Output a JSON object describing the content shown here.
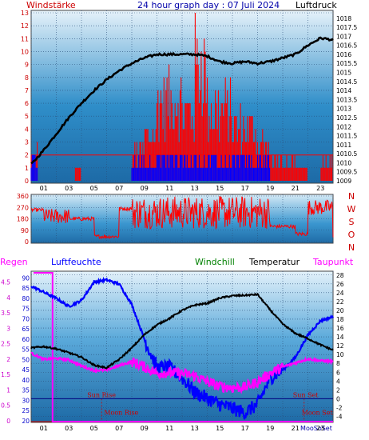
{
  "header": {
    "left_label": "Windstärke",
    "title": "24 hour graph day : 07 Juli 2024",
    "right_label": "Luftdruck"
  },
  "middle_labels": {
    "directions": [
      "N",
      "W",
      "S",
      "O",
      "N"
    ]
  },
  "bottom_header": {
    "regen": "Regen",
    "luftfeuchte": "Luftfeuchte",
    "windchill": "Windchill",
    "temperatur": "Temperatur",
    "taupunkt": "Taupunkt"
  },
  "colors": {
    "wind": "#ff0000",
    "gust_base": "#0000ff",
    "pressure": "#000000",
    "humidity": "#0000ff",
    "temperature": "#000000",
    "dewpoint": "#ff00ff",
    "rain": "#ff00ff",
    "sun_line": "#000080",
    "label_red": "#cc0000"
  },
  "chart_data": [
    {
      "type": "line",
      "name": "panel-1",
      "x_tick_labels": [
        "01",
        "03",
        "05",
        "07",
        "09",
        "11",
        "13",
        "15",
        "17",
        "19",
        "21",
        "23"
      ],
      "left_axis": {
        "label": "Windstärke",
        "ticks": [
          0,
          1,
          2,
          3,
          4,
          5,
          6,
          7,
          8,
          9,
          10,
          11,
          12,
          13
        ],
        "ylim": [
          0,
          13
        ]
      },
      "right_axis": {
        "label": "Luftdruck",
        "ticks": [
          "1009",
          "1009.5",
          "1010",
          "1010.5",
          "1011",
          "1011.5",
          "1012",
          "1012.5",
          "1013",
          "1013.5",
          "1014",
          "1014.5",
          "1015",
          "1015.5",
          "1016",
          "1016.5",
          "1017",
          "1017.5",
          "1018"
        ],
        "ylim": [
          1009,
          1018.3
        ]
      },
      "pressure_points": [
        [
          0,
          1009.9
        ],
        [
          1,
          1010.7
        ],
        [
          2,
          1011.6
        ],
        [
          3,
          1012.5
        ],
        [
          4,
          1013.3
        ],
        [
          5,
          1014.0
        ],
        [
          6,
          1014.6
        ],
        [
          7,
          1015.1
        ],
        [
          8,
          1015.5
        ],
        [
          9,
          1015.8
        ],
        [
          10,
          1016.0
        ],
        [
          11,
          1016.0
        ],
        [
          12,
          1016.0
        ],
        [
          13,
          1016.0
        ],
        [
          14,
          1015.9
        ],
        [
          15,
          1015.6
        ],
        [
          16,
          1015.5
        ],
        [
          17,
          1015.6
        ],
        [
          18,
          1015.5
        ],
        [
          19,
          1015.6
        ],
        [
          20,
          1015.8
        ],
        [
          21,
          1016.0
        ],
        [
          22,
          1016.5
        ],
        [
          23,
          1016.9
        ],
        [
          24,
          1016.8
        ]
      ],
      "wind_level_periods": [
        [
          0,
          0.5,
          3
        ],
        [
          3.5,
          4,
          1
        ],
        [
          8,
          9,
          3
        ],
        [
          9,
          10,
          5
        ],
        [
          10,
          12,
          9
        ],
        [
          12,
          13,
          8
        ],
        [
          13,
          14,
          13
        ],
        [
          14,
          16,
          8
        ],
        [
          16,
          18,
          6
        ],
        [
          18,
          19,
          4
        ],
        [
          19,
          21,
          2
        ],
        [
          21,
          22,
          1
        ],
        [
          23,
          24,
          2
        ]
      ]
    },
    {
      "type": "line",
      "name": "panel-2",
      "ylabel_ticks": [
        0,
        90,
        180,
        270,
        360
      ],
      "ylim": [
        0,
        360
      ],
      "right_labels": [
        "N",
        "W",
        "S",
        "O",
        "N"
      ],
      "direction_periods": [
        [
          0,
          1,
          250
        ],
        [
          1,
          3,
          200
        ],
        [
          3,
          5,
          180
        ],
        [
          5,
          7,
          40
        ],
        [
          7,
          8,
          260
        ],
        [
          8,
          19,
          190
        ],
        [
          19,
          21,
          120
        ],
        [
          21,
          22,
          60
        ],
        [
          22,
          24,
          270
        ]
      ]
    },
    {
      "type": "line",
      "name": "panel-3",
      "x_tick_labels": [
        "01",
        "03",
        "05",
        "07",
        "09",
        "11",
        "13",
        "15",
        "17",
        "19",
        "21",
        "23"
      ],
      "left_axis_rain": {
        "label": "Regen",
        "ticks": [
          "0",
          "0.5",
          "1",
          "1.5",
          "2",
          "2.5",
          "3",
          "3.5",
          "4",
          "4.5"
        ],
        "ylim": [
          0,
          4.8
        ]
      },
      "left_axis_humidity": {
        "label": "Luftfeuchte",
        "ticks": [
          20,
          25,
          30,
          35,
          40,
          45,
          50,
          55,
          60,
          65,
          70,
          75,
          80,
          85,
          90
        ],
        "ylim": [
          20,
          92.5
        ]
      },
      "right_axis_temp": {
        "label": "Temperatur",
        "ticks": [
          -4,
          -2,
          0,
          2,
          4,
          6,
          8,
          10,
          12,
          14,
          16,
          18,
          20,
          22,
          24,
          26,
          28
        ],
        "ylim": [
          -5,
          28.5
        ]
      },
      "annotations": {
        "sun_rise": "Sun Rise",
        "sun_set": "Sun Set",
        "moon_rise": "Moon Rise",
        "moon_set": "Moon Set",
        "moon_set_bottom": "MooSoSet"
      },
      "temperature": [
        [
          0,
          11.5
        ],
        [
          1,
          11.8
        ],
        [
          2,
          11.3
        ],
        [
          3,
          10.4
        ],
        [
          4,
          9.4
        ],
        [
          5,
          7.6
        ],
        [
          6,
          7.0
        ],
        [
          7,
          8.9
        ],
        [
          8,
          11.5
        ],
        [
          9,
          14.5
        ],
        [
          10,
          16.7
        ],
        [
          11,
          18.2
        ],
        [
          12,
          20.0
        ],
        [
          13,
          21.2
        ],
        [
          14,
          21.6
        ],
        [
          15,
          22.8
        ],
        [
          16,
          23.3
        ],
        [
          17,
          23.4
        ],
        [
          18,
          23.6
        ],
        [
          19,
          20.1
        ],
        [
          20,
          16.9
        ],
        [
          21,
          14.8
        ],
        [
          22,
          13.6
        ],
        [
          23,
          12.2
        ],
        [
          24,
          11.0
        ]
      ],
      "dewpoint": [
        [
          0,
          10.3
        ],
        [
          1,
          8.9
        ],
        [
          2,
          9.1
        ],
        [
          3,
          8.8
        ],
        [
          4,
          7.4
        ],
        [
          5,
          6.4
        ],
        [
          6,
          6.5
        ],
        [
          7,
          7.5
        ],
        [
          8,
          8.4
        ],
        [
          9,
          7.2
        ],
        [
          10,
          5.8
        ],
        [
          11,
          5.9
        ],
        [
          12,
          5.7
        ],
        [
          13,
          5.2
        ],
        [
          14,
          3.8
        ],
        [
          15,
          2.8
        ],
        [
          16,
          2.5
        ],
        [
          17,
          2.6
        ],
        [
          18,
          3.8
        ],
        [
          19,
          5.7
        ],
        [
          20,
          7.2
        ],
        [
          21,
          8.1
        ],
        [
          22,
          9.0
        ],
        [
          23,
          8.6
        ],
        [
          24,
          8.4
        ]
      ],
      "humidity": [
        [
          0,
          86
        ],
        [
          1,
          83
        ],
        [
          2,
          80
        ],
        [
          3,
          76
        ],
        [
          4,
          79
        ],
        [
          5,
          88
        ],
        [
          6,
          89
        ],
        [
          7,
          87
        ],
        [
          8,
          77
        ],
        [
          9,
          60
        ],
        [
          10,
          46
        ],
        [
          11,
          46
        ],
        [
          12,
          41
        ],
        [
          13,
          34
        ],
        [
          14,
          31
        ],
        [
          15,
          28
        ],
        [
          16,
          26
        ],
        [
          17,
          24
        ],
        [
          18,
          28
        ],
        [
          19,
          41
        ],
        [
          20,
          45
        ],
        [
          21,
          51
        ],
        [
          22,
          62
        ],
        [
          23,
          69
        ],
        [
          24,
          71
        ]
      ],
      "rain_total": 4.8,
      "sun_rise_hour": 5.6,
      "sun_set_hour": 21.7,
      "moon_rise_hour": 5.8,
      "moon_set_hour": 21.5
    }
  ]
}
